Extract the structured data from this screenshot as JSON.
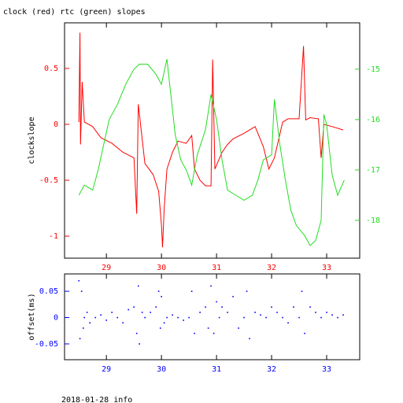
{
  "footer": "2018-01-28 info",
  "chart_data": [
    {
      "type": "line",
      "title": "clock (red) rtc (green) slopes",
      "ylabel": "clockslope",
      "xlim": [
        28.24,
        33.6
      ],
      "xticks": [
        29,
        30,
        31,
        32,
        33
      ],
      "ylim": [
        -1.197,
        0.908
      ],
      "yticks": [
        0.5,
        0,
        -0.5,
        -1
      ],
      "y2lim": [
        -18.75,
        -14.08
      ],
      "y2ticks": [
        -15,
        -16,
        -17,
        -18
      ],
      "series": [
        {
          "name": "clock",
          "color": "#ff0000",
          "x": [
            28.5,
            28.52,
            28.53,
            28.56,
            28.6,
            28.75,
            28.9,
            29.1,
            29.3,
            29.5,
            29.55,
            29.58,
            29.7,
            29.85,
            29.95,
            30.0,
            30.02,
            30.05,
            30.1,
            30.2,
            30.3,
            30.45,
            30.55,
            30.6,
            30.7,
            30.8,
            30.9,
            30.93,
            30.97,
            31.1,
            31.2,
            31.3,
            31.5,
            31.6,
            31.7,
            31.85,
            31.95,
            32.05,
            32.2,
            32.3,
            32.5,
            32.58,
            32.62,
            32.7,
            32.85,
            32.9,
            32.95,
            33.1,
            33.3
          ],
          "values": [
            0.02,
            0.82,
            -0.18,
            0.38,
            0.02,
            -0.02,
            -0.12,
            -0.17,
            -0.25,
            -0.3,
            -0.8,
            0.18,
            -0.35,
            -0.45,
            -0.6,
            -0.9,
            -1.1,
            -0.75,
            -0.4,
            -0.25,
            -0.15,
            -0.17,
            -0.1,
            -0.4,
            -0.5,
            -0.55,
            -0.55,
            0.58,
            -0.4,
            -0.25,
            -0.18,
            -0.13,
            -0.08,
            -0.05,
            -0.02,
            -0.2,
            -0.4,
            -0.3,
            0.02,
            0.05,
            0.05,
            0.7,
            0.04,
            0.06,
            0.05,
            -0.3,
            0.0,
            -0.02,
            -0.05
          ]
        },
        {
          "name": "rtc",
          "color": "#22dd22",
          "axis": "y2",
          "x": [
            28.5,
            28.6,
            28.75,
            28.85,
            28.95,
            29.05,
            29.2,
            29.35,
            29.5,
            29.6,
            29.75,
            29.9,
            30.0,
            30.1,
            30.15,
            30.25,
            30.35,
            30.45,
            30.55,
            30.65,
            30.8,
            30.9,
            31.0,
            31.1,
            31.2,
            31.35,
            31.5,
            31.65,
            31.75,
            31.85,
            32.0,
            32.05,
            32.15,
            32.25,
            32.35,
            32.45,
            32.6,
            32.7,
            32.8,
            32.9,
            32.95,
            33.0,
            33.1,
            33.2,
            33.32
          ],
          "values": [
            -17.5,
            -17.3,
            -17.4,
            -17.0,
            -16.5,
            -16.0,
            -15.7,
            -15.3,
            -15.0,
            -14.9,
            -14.9,
            -15.1,
            -15.3,
            -14.8,
            -15.3,
            -16.3,
            -16.8,
            -17.0,
            -17.3,
            -16.7,
            -16.2,
            -15.5,
            -16.0,
            -16.8,
            -17.4,
            -17.5,
            -17.6,
            -17.5,
            -17.2,
            -16.8,
            -16.7,
            -15.6,
            -16.5,
            -17.2,
            -17.8,
            -18.1,
            -18.3,
            -18.5,
            -18.4,
            -18.0,
            -15.9,
            -16.1,
            -17.1,
            -17.5,
            -17.2
          ]
        }
      ]
    },
    {
      "type": "scatter",
      "ylabel": "offset(ms)",
      "color": "#0000ff",
      "xlim": [
        28.24,
        33.6
      ],
      "xticks": [
        29,
        30,
        31,
        32,
        33
      ],
      "ylim": [
        -0.08,
        0.083
      ],
      "yticks": [
        0.05,
        0,
        -0.05
      ],
      "x": [
        28.5,
        28.52,
        28.55,
        28.58,
        28.6,
        28.65,
        28.7,
        28.8,
        28.9,
        29.0,
        29.1,
        29.2,
        29.3,
        29.4,
        29.5,
        29.55,
        29.58,
        29.6,
        29.65,
        29.7,
        29.8,
        29.9,
        29.95,
        29.98,
        30.0,
        30.05,
        30.1,
        30.2,
        30.3,
        30.4,
        30.5,
        30.55,
        30.6,
        30.7,
        30.8,
        30.85,
        30.9,
        30.95,
        31.0,
        31.05,
        31.1,
        31.2,
        31.3,
        31.4,
        31.5,
        31.55,
        31.6,
        31.7,
        31.8,
        31.9,
        32.0,
        32.1,
        32.2,
        32.3,
        32.4,
        32.5,
        32.55,
        32.6,
        32.7,
        32.8,
        32.9,
        33.0,
        33.1,
        33.2,
        33.3
      ],
      "values": [
        0.07,
        -0.04,
        0.05,
        -0.02,
        0.0,
        0.01,
        -0.01,
        0.0,
        0.005,
        -0.005,
        0.01,
        0.0,
        -0.01,
        0.015,
        0.02,
        -0.03,
        0.06,
        -0.05,
        0.01,
        0.0,
        0.01,
        0.02,
        0.05,
        -0.02,
        0.04,
        -0.01,
        0.0,
        0.005,
        0.0,
        -0.005,
        0.0,
        0.05,
        -0.03,
        0.01,
        0.02,
        -0.02,
        0.06,
        -0.03,
        0.03,
        0.0,
        0.02,
        0.01,
        0.04,
        -0.02,
        0.0,
        0.05,
        -0.04,
        0.01,
        0.005,
        0.0,
        0.02,
        0.01,
        0.0,
        -0.01,
        0.02,
        0.0,
        0.05,
        -0.03,
        0.02,
        0.01,
        0.0,
        0.01,
        0.005,
        0.0,
        0.005
      ]
    }
  ]
}
